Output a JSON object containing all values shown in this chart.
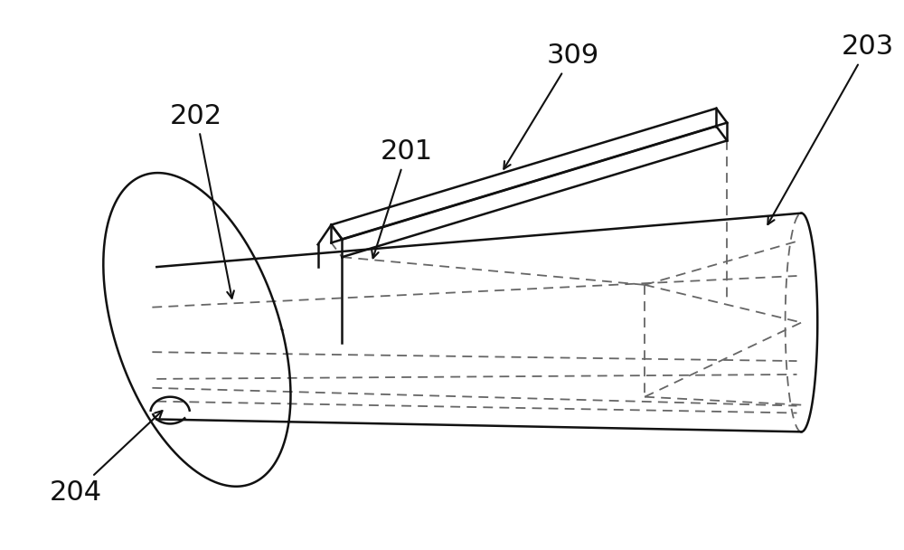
{
  "background_color": "#ffffff",
  "line_color": "#111111",
  "dashed_color": "#666666",
  "figsize": [
    10.0,
    6.08
  ],
  "dpi": 100
}
